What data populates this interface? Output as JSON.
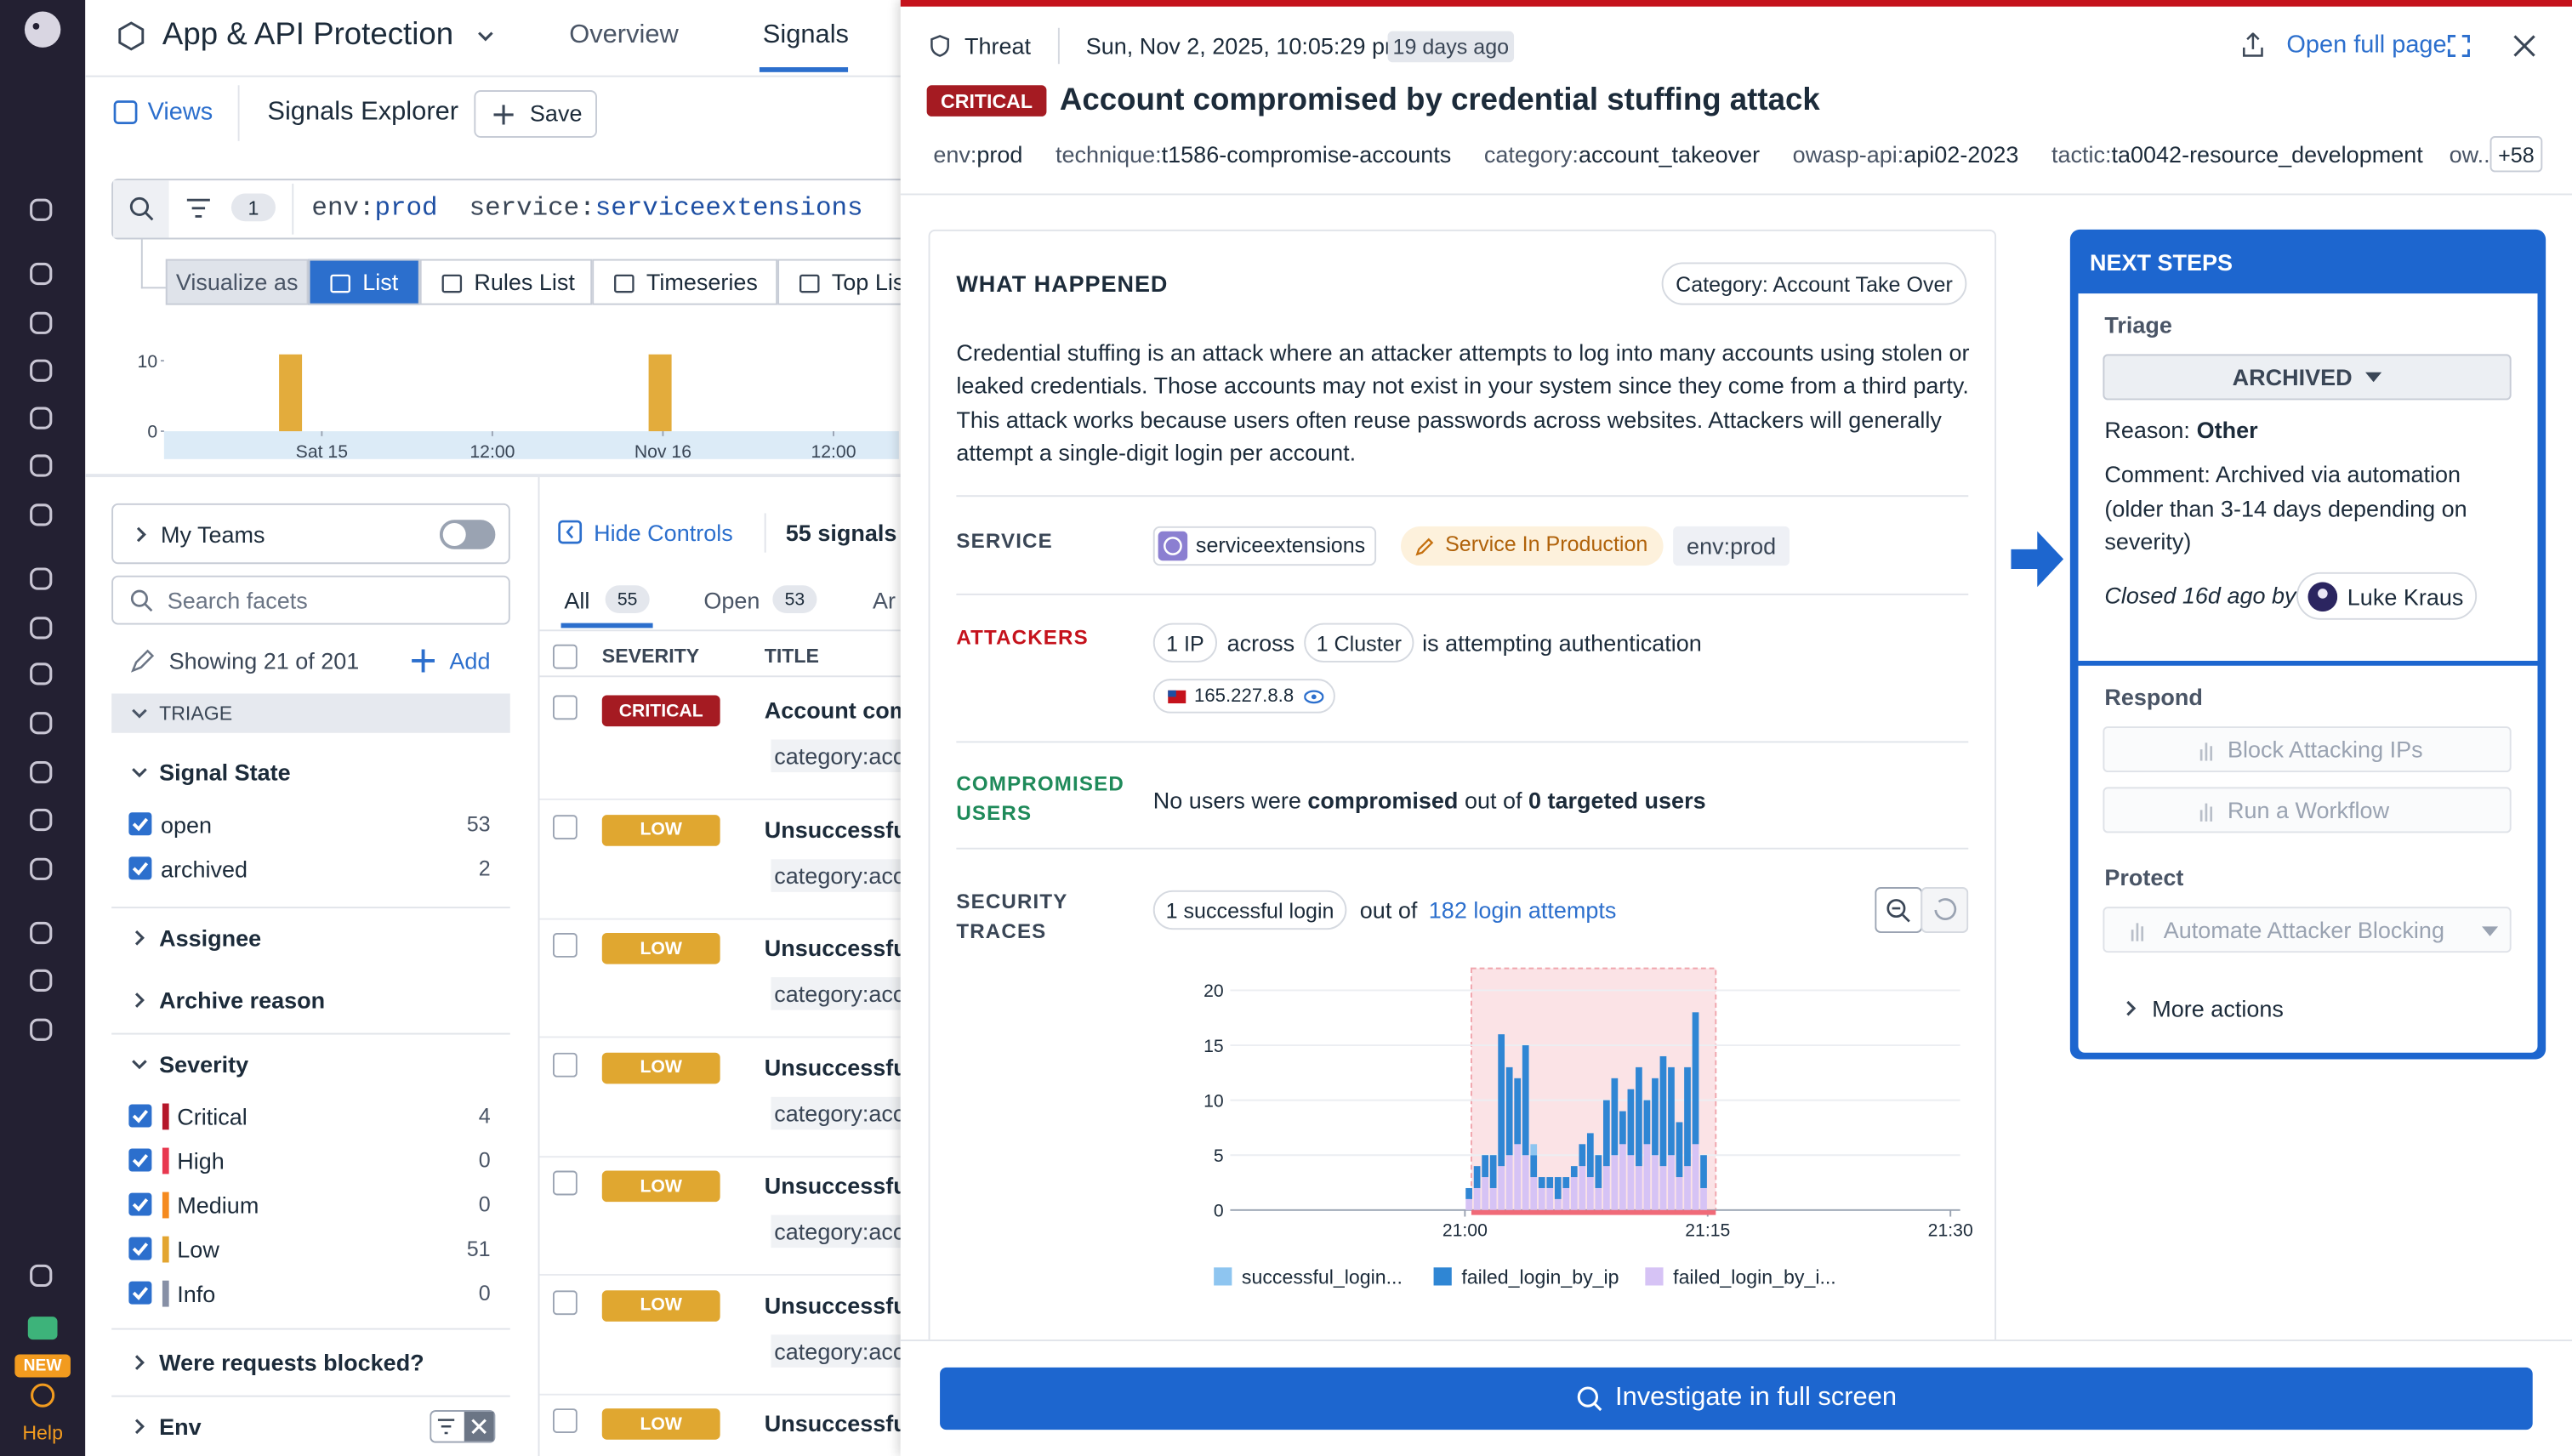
{
  "sidebar": {
    "new_badge": "NEW",
    "help": "Help"
  },
  "app_header": {
    "title": "App & API Protection",
    "tabs": [
      "Overview",
      "Signals"
    ]
  },
  "toolbar": {
    "views": "Views",
    "explorer": "Signals Explorer",
    "save": "Save"
  },
  "query": {
    "filter_count": 1,
    "terms": [
      {
        "key": "env:",
        "value": "prod"
      },
      {
        "key": "service:",
        "value": "serviceextensions"
      }
    ]
  },
  "visualize": {
    "label": "Visualize as",
    "options": [
      "List",
      "Rules List",
      "Timeseries",
      "Top List"
    ]
  },
  "signal_histogram": {
    "type": "bar",
    "color": "#e3ac3c",
    "x": [
      -2.2,
      23.8
    ],
    "values": [
      10.9,
      10.9
    ],
    "xlim": [
      -11.1,
      40.6
    ],
    "xticks": [
      {
        "value": 0,
        "label": "Sat 15"
      },
      {
        "value": 12,
        "label": "12:00"
      },
      {
        "value": 24,
        "label": "Nov 16"
      },
      {
        "value": 36,
        "label": "12:00"
      }
    ],
    "ylim": [
      0,
      12
    ],
    "yticks": [
      0,
      10
    ]
  },
  "facets": {
    "my_teams": "My Teams",
    "search_placeholder": "Search facets",
    "showing": "Showing 21 of 201",
    "add": "Add",
    "group": "TRIAGE",
    "signal_state": {
      "title": "Signal State",
      "items": [
        {
          "label": "open",
          "count": 53
        },
        {
          "label": "archived",
          "count": 2
        }
      ]
    },
    "assignee": "Assignee",
    "archive_reason": "Archive reason",
    "severity": {
      "title": "Severity",
      "items": [
        {
          "label": "Critical",
          "count": 4,
          "color": "#b5172a"
        },
        {
          "label": "High",
          "count": 0,
          "color": "#e8384f"
        },
        {
          "label": "Medium",
          "count": 0,
          "color": "#f58a1f"
        },
        {
          "label": "Low",
          "count": 51,
          "color": "#e3a530"
        },
        {
          "label": "Info",
          "count": 0,
          "color": "#8790a6"
        }
      ]
    },
    "requests_blocked": "Were requests blocked?",
    "env": "Env"
  },
  "signal_list": {
    "hide_controls": "Hide Controls",
    "count": "55 signals",
    "tabs": [
      {
        "label": "All",
        "count": 55
      },
      {
        "label": "Open",
        "count": 53
      },
      {
        "label": "Ar"
      }
    ],
    "columns": [
      "SEVERITY",
      "TITLE"
    ],
    "rows": [
      {
        "severity": "CRITICAL",
        "title": "Account com",
        "tag": "category:acc"
      },
      {
        "severity": "LOW",
        "title": "Unsuccessfu",
        "tag": "category:acc"
      },
      {
        "severity": "LOW",
        "title": "Unsuccessfu",
        "tag": "category:acc"
      },
      {
        "severity": "LOW",
        "title": "Unsuccessfu",
        "tag": "category:acc"
      },
      {
        "severity": "LOW",
        "title": "Unsuccessfu",
        "tag": "category:acc"
      },
      {
        "severity": "LOW",
        "title": "Unsuccessfu",
        "tag": "category:acc"
      },
      {
        "severity": "LOW",
        "title": "Unsuccessfu"
      }
    ]
  },
  "signal_detail": {
    "kind": "Threat",
    "timestamp": "Sun, Nov 2, 2025, 10:05:29 pm",
    "age": "19 days ago",
    "open_full_page": "Open full page",
    "severity": "CRITICAL",
    "title": "Account compromised by credential stuffing attack",
    "tags": [
      {
        "key": "env:",
        "value": "prod"
      },
      {
        "key": "technique:",
        "value": "t1586-compromise-accounts"
      },
      {
        "key": "category:",
        "value": "account_takeover"
      },
      {
        "key": "owasp-api:",
        "value": "api02-2023"
      },
      {
        "key": "tactic:",
        "value": "ta0042-resource_development"
      }
    ],
    "truncated_tag": "ow...",
    "more_tags": "+58",
    "what_happened": {
      "heading": "WHAT HAPPENED",
      "category": "Category: Account Take Over",
      "description": "Credential stuffing is an attack where an attacker attempts to log into many accounts using stolen or leaked credentials. Those accounts may not exist in your system since they come from a third party. This attack works because users often reuse passwords across websites. Attackers will generally attempt a single-digit login per account."
    },
    "service": {
      "label": "SERVICE",
      "name": "serviceextensions",
      "environment_badge": "Service In Production",
      "env": "env:prod"
    },
    "attackers": {
      "label": "ATTACKERS",
      "ips": "1 IP",
      "across": "across",
      "clusters": "1 Cluster",
      "action": "is attempting authentication",
      "ip": "165.227.8.8"
    },
    "compromised_users": {
      "label": "COMPROMISED USERS",
      "text": [
        "No users were ",
        "compromised",
        " out of ",
        "0 targeted users"
      ]
    },
    "security_traces": {
      "label": "SECURITY TRACES",
      "successful": "1 successful login",
      "out_of": "out of",
      "attempts": "182 login attempts",
      "chart": {
        "type": "bar",
        "stacked": true,
        "xlim": [
          -14.5,
          30.6
        ],
        "xticks": [
          {
            "value": 0,
            "label": "21:00"
          },
          {
            "value": 15,
            "label": "21:15"
          },
          {
            "value": 30,
            "label": "21:30"
          }
        ],
        "ylim": [
          0,
          22
        ],
        "yticks": [
          0,
          5,
          10,
          15,
          20
        ],
        "grid": true,
        "highlight": [
          0.4,
          15.5
        ],
        "highlight_color": "#fbe3e6",
        "x": [
          0.25,
          0.75,
          1.25,
          1.75,
          2.25,
          2.75,
          3.25,
          3.75,
          4.25,
          4.75,
          5.25,
          5.75,
          6.25,
          6.75,
          7.25,
          7.75,
          8.25,
          8.75,
          9.25,
          9.75,
          10.25,
          10.75,
          11.25,
          11.75,
          12.25,
          12.75,
          13.25,
          13.75,
          14.25,
          14.75
        ],
        "series": [
          {
            "name": "successful_login...",
            "color": "#8ec5f0",
            "values": [
              0,
              0,
              0,
              0,
              0,
              0,
              0,
              0,
              1,
              0,
              0,
              0,
              0,
              0,
              0,
              0,
              0,
              0,
              0,
              0,
              0,
              0,
              0,
              0,
              0,
              0,
              0,
              0,
              0,
              0
            ]
          },
          {
            "name": "failed_login_by_ip",
            "color": "#2f86d4",
            "values": [
              1,
              2,
              2,
              3,
              12,
              8,
              6,
              10,
              2,
              1,
              1,
              2,
              1,
              1,
              2,
              4,
              3,
              6,
              7,
              3,
              6,
              9,
              4,
              7,
              10,
              8,
              5,
              9,
              12,
              3
            ]
          },
          {
            "name": "failed_login_by_i...",
            "color": "#d6c3f5",
            "values": [
              1,
              2,
              3,
              2,
              4,
              5,
              6,
              5,
              3,
              2,
              2,
              1,
              2,
              3,
              4,
              3,
              2,
              4,
              5,
              6,
              5,
              4,
              6,
              5,
              4,
              5,
              3,
              4,
              6,
              2
            ]
          }
        ]
      }
    },
    "investigate": "Investigate in full screen"
  },
  "next_steps": {
    "heading": "NEXT STEPS",
    "triage": "Triage",
    "status": "ARCHIVED",
    "reason_label": "Reason:",
    "reason": "Other",
    "comment": "Comment: Archived via automation (older than 3-14 days depending on severity)",
    "closed": "Closed 16d ago by",
    "user": "Luke Kraus",
    "respond": "Respond",
    "block": "Block Attacking IPs",
    "workflow": "Run a Workflow",
    "protect": "Protect",
    "automate": "Automate Attacker Blocking",
    "more": "More actions"
  }
}
